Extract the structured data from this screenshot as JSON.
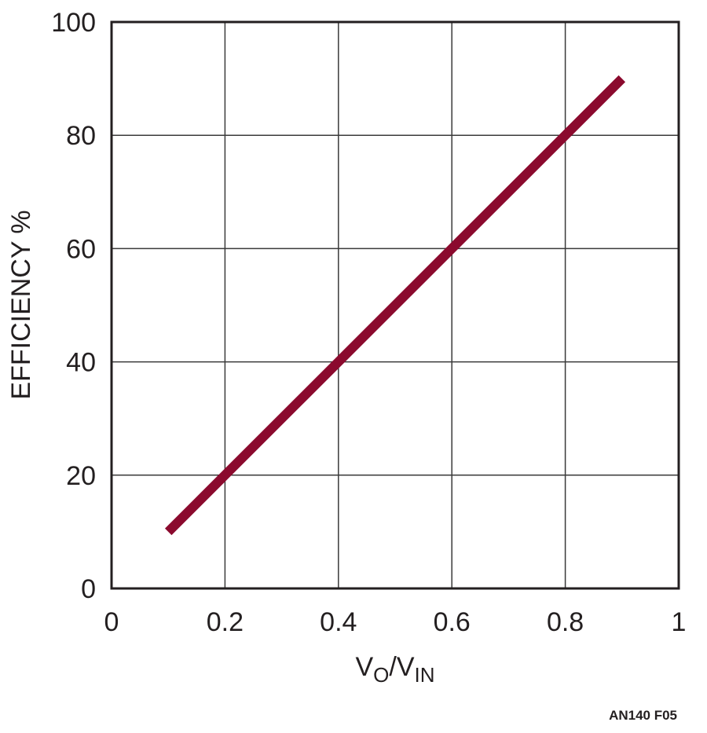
{
  "chart_data": {
    "type": "line",
    "title": "",
    "xlabel": {
      "base1": "V",
      "sub1": "O",
      "sep": "/V",
      "sub2": "IN"
    },
    "ylabel": "EFFICIENCY %",
    "xlim": [
      0,
      1
    ],
    "ylim": [
      0,
      100
    ],
    "x_ticks": [
      "0",
      "0.2",
      "0.4",
      "0.6",
      "0.8",
      "1"
    ],
    "y_ticks": [
      "0",
      "20",
      "40",
      "60",
      "80",
      "100"
    ],
    "grid": true,
    "series": [
      {
        "color": "#8b0a2e",
        "x": [
          0.1,
          0.2,
          0.4,
          0.6,
          0.8,
          0.9
        ],
        "y": [
          10,
          20,
          40,
          60,
          80,
          90
        ]
      }
    ]
  },
  "figure_id": "AN140 F05"
}
